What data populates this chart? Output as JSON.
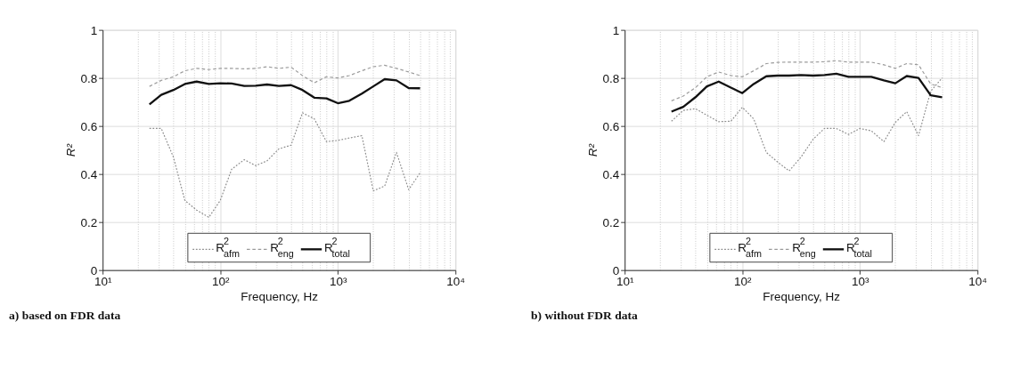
{
  "chart_data": [
    {
      "type": "line",
      "title": "a) based on FDR data",
      "xlabel": "Frequency, Hz",
      "ylabel": "R²",
      "x": [
        25,
        31.5,
        40,
        50,
        63,
        80,
        100,
        125,
        160,
        200,
        250,
        315,
        400,
        500,
        630,
        800,
        1000,
        1250,
        1600,
        2000,
        2500,
        3150,
        4000,
        5000
      ],
      "series": [
        {
          "name": "R$^{2}$$_{afm}$",
          "color": "#8c8c8c",
          "line_style": "dotted",
          "values": [
            0.59,
            0.59,
            0.47,
            0.29,
            0.25,
            0.22,
            0.29,
            0.42,
            0.46,
            0.435,
            0.455,
            0.505,
            0.52,
            0.655,
            0.63,
            0.535,
            0.54,
            0.55,
            0.56,
            0.33,
            0.35,
            0.49,
            0.335,
            0.405
          ]
        },
        {
          "name": "R$^{2}$$_{eng}$",
          "color": "#9a9a9a",
          "line_style": "dashed",
          "values": [
            0.765,
            0.79,
            0.805,
            0.83,
            0.84,
            0.835,
            0.84,
            0.84,
            0.838,
            0.84,
            0.847,
            0.84,
            0.845,
            0.81,
            0.78,
            0.805,
            0.8,
            0.81,
            0.83,
            0.847,
            0.853,
            0.84,
            0.825,
            0.81
          ]
        },
        {
          "name": "R$^{2}$$_{total}$",
          "color": "#111111",
          "line_style": "solid",
          "values": [
            0.69,
            0.73,
            0.75,
            0.775,
            0.785,
            0.775,
            0.778,
            0.777,
            0.767,
            0.768,
            0.773,
            0.767,
            0.77,
            0.75,
            0.718,
            0.715,
            0.695,
            0.705,
            0.735,
            0.765,
            0.795,
            0.79,
            0.758,
            0.757
          ]
        }
      ],
      "log": "x",
      "xlim": [
        10,
        10000
      ],
      "ylim": [
        0,
        1
      ],
      "yticks": [
        0,
        0.2,
        0.4,
        0.6,
        0.8,
        1
      ],
      "xticks": [
        {
          "value": 10,
          "label": "10¹"
        },
        {
          "value": 20,
          "label": null
        },
        {
          "value": 30,
          "label": null
        },
        {
          "value": 40,
          "label": null
        },
        {
          "value": 50,
          "label": null
        },
        {
          "value": 60,
          "label": null
        },
        {
          "value": 70,
          "label": null
        },
        {
          "value": 80,
          "label": null
        },
        {
          "value": 90,
          "label": null
        },
        {
          "value": 100,
          "label": "10²"
        },
        {
          "value": 200,
          "label": null
        },
        {
          "value": 300,
          "label": null
        },
        {
          "value": 400,
          "label": null
        },
        {
          "value": 500,
          "label": null
        },
        {
          "value": 600,
          "label": null
        },
        {
          "value": 700,
          "label": null
        },
        {
          "value": 800,
          "label": null
        },
        {
          "value": 900,
          "label": null
        },
        {
          "value": 1000,
          "label": "10³"
        },
        {
          "value": 2000,
          "label": null
        },
        {
          "value": 3000,
          "label": null
        },
        {
          "value": 4000,
          "label": null
        },
        {
          "value": 5000,
          "label": null
        },
        {
          "value": 6000,
          "label": null
        },
        {
          "value": 7000,
          "label": null
        },
        {
          "value": 8000,
          "label": null
        },
        {
          "value": 9000,
          "label": null
        },
        {
          "value": 10000,
          "label": "10⁴"
        }
      ],
      "grid": true,
      "legend": "bottom"
    },
    {
      "type": "line",
      "title": "b) without FDR data",
      "xlabel": "Frequency, Hz",
      "ylabel": "R²",
      "x": [
        25,
        31.5,
        40,
        50,
        63,
        80,
        100,
        125,
        160,
        200,
        250,
        315,
        400,
        500,
        630,
        800,
        1000,
        1250,
        1600,
        2000,
        2500,
        3150,
        4000,
        5000
      ],
      "series": [
        {
          "name": "R$^{2}$$_{afm}$",
          "color": "#8c8c8c",
          "line_style": "dotted",
          "values": [
            0.62,
            0.665,
            0.672,
            0.645,
            0.618,
            0.62,
            0.678,
            0.63,
            0.49,
            0.45,
            0.413,
            0.47,
            0.545,
            0.59,
            0.59,
            0.565,
            0.59,
            0.58,
            0.535,
            0.615,
            0.66,
            0.56,
            0.745,
            0.8
          ]
        },
        {
          "name": "R$^{2}$$_{eng}$",
          "color": "#9a9a9a",
          "line_style": "dashed",
          "values": [
            0.705,
            0.725,
            0.76,
            0.805,
            0.825,
            0.81,
            0.805,
            0.83,
            0.86,
            0.865,
            0.866,
            0.866,
            0.866,
            0.868,
            0.872,
            0.866,
            0.866,
            0.866,
            0.855,
            0.84,
            0.86,
            0.855,
            0.775,
            0.76
          ]
        },
        {
          "name": "R$^{2}$$_{total}$",
          "color": "#111111",
          "line_style": "solid",
          "values": [
            0.66,
            0.68,
            0.72,
            0.765,
            0.785,
            0.76,
            0.737,
            0.775,
            0.807,
            0.81,
            0.81,
            0.812,
            0.81,
            0.812,
            0.818,
            0.805,
            0.805,
            0.805,
            0.79,
            0.778,
            0.808,
            0.8,
            0.728,
            0.72
          ]
        }
      ],
      "log": "x",
      "xlim": [
        10,
        10000
      ],
      "ylim": [
        0,
        1
      ],
      "yticks": [
        0,
        0.2,
        0.4,
        0.6,
        0.8,
        1
      ],
      "xticks": [
        {
          "value": 10,
          "label": "10¹"
        },
        {
          "value": 20,
          "label": null
        },
        {
          "value": 30,
          "label": null
        },
        {
          "value": 40,
          "label": null
        },
        {
          "value": 50,
          "label": null
        },
        {
          "value": 60,
          "label": null
        },
        {
          "value": 70,
          "label": null
        },
        {
          "value": 80,
          "label": null
        },
        {
          "value": 90,
          "label": null
        },
        {
          "value": 100,
          "label": "10²"
        },
        {
          "value": 200,
          "label": null
        },
        {
          "value": 300,
          "label": null
        },
        {
          "value": 400,
          "label": null
        },
        {
          "value": 500,
          "label": null
        },
        {
          "value": 600,
          "label": null
        },
        {
          "value": 700,
          "label": null
        },
        {
          "value": 800,
          "label": null
        },
        {
          "value": 900,
          "label": null
        },
        {
          "value": 1000,
          "label": "10³"
        },
        {
          "value": 2000,
          "label": null
        },
        {
          "value": 3000,
          "label": null
        },
        {
          "value": 4000,
          "label": null
        },
        {
          "value": 5000,
          "label": null
        },
        {
          "value": 6000,
          "label": null
        },
        {
          "value": 7000,
          "label": null
        },
        {
          "value": 8000,
          "label": null
        },
        {
          "value": 9000,
          "label": null
        },
        {
          "value": 10000,
          "label": "10⁴"
        }
      ],
      "grid": true,
      "legend": "bottom"
    }
  ]
}
